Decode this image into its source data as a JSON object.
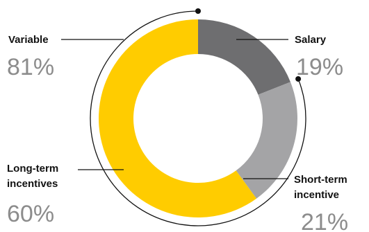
{
  "chart_data": {
    "type": "pie",
    "donut": true,
    "slices": [
      {
        "label": "Salary",
        "value": 19,
        "color": "#6e6e70"
      },
      {
        "label": "Short-term incentive",
        "value": 21,
        "color": "#a4a4a6"
      },
      {
        "label": "Long-term incentives",
        "value": 60,
        "color": "#ffcc00"
      }
    ],
    "groups": [
      {
        "label": "Variable",
        "value": 81,
        "spans": [
          "Short-term incentive",
          "Long-term incentives"
        ]
      }
    ]
  },
  "labels": {
    "variable": {
      "lines": [
        "Variable"
      ],
      "pct": "81%"
    },
    "salary": {
      "lines": [
        "Salary"
      ],
      "pct": "19%"
    },
    "short_term": {
      "lines": [
        "Short-term",
        "incentive"
      ],
      "pct": "21%"
    },
    "long_term": {
      "lines": [
        "Long-term",
        "incentives"
      ],
      "pct": "60%"
    }
  },
  "colors": {
    "bracket": "#111111",
    "background": "#ffffff"
  }
}
